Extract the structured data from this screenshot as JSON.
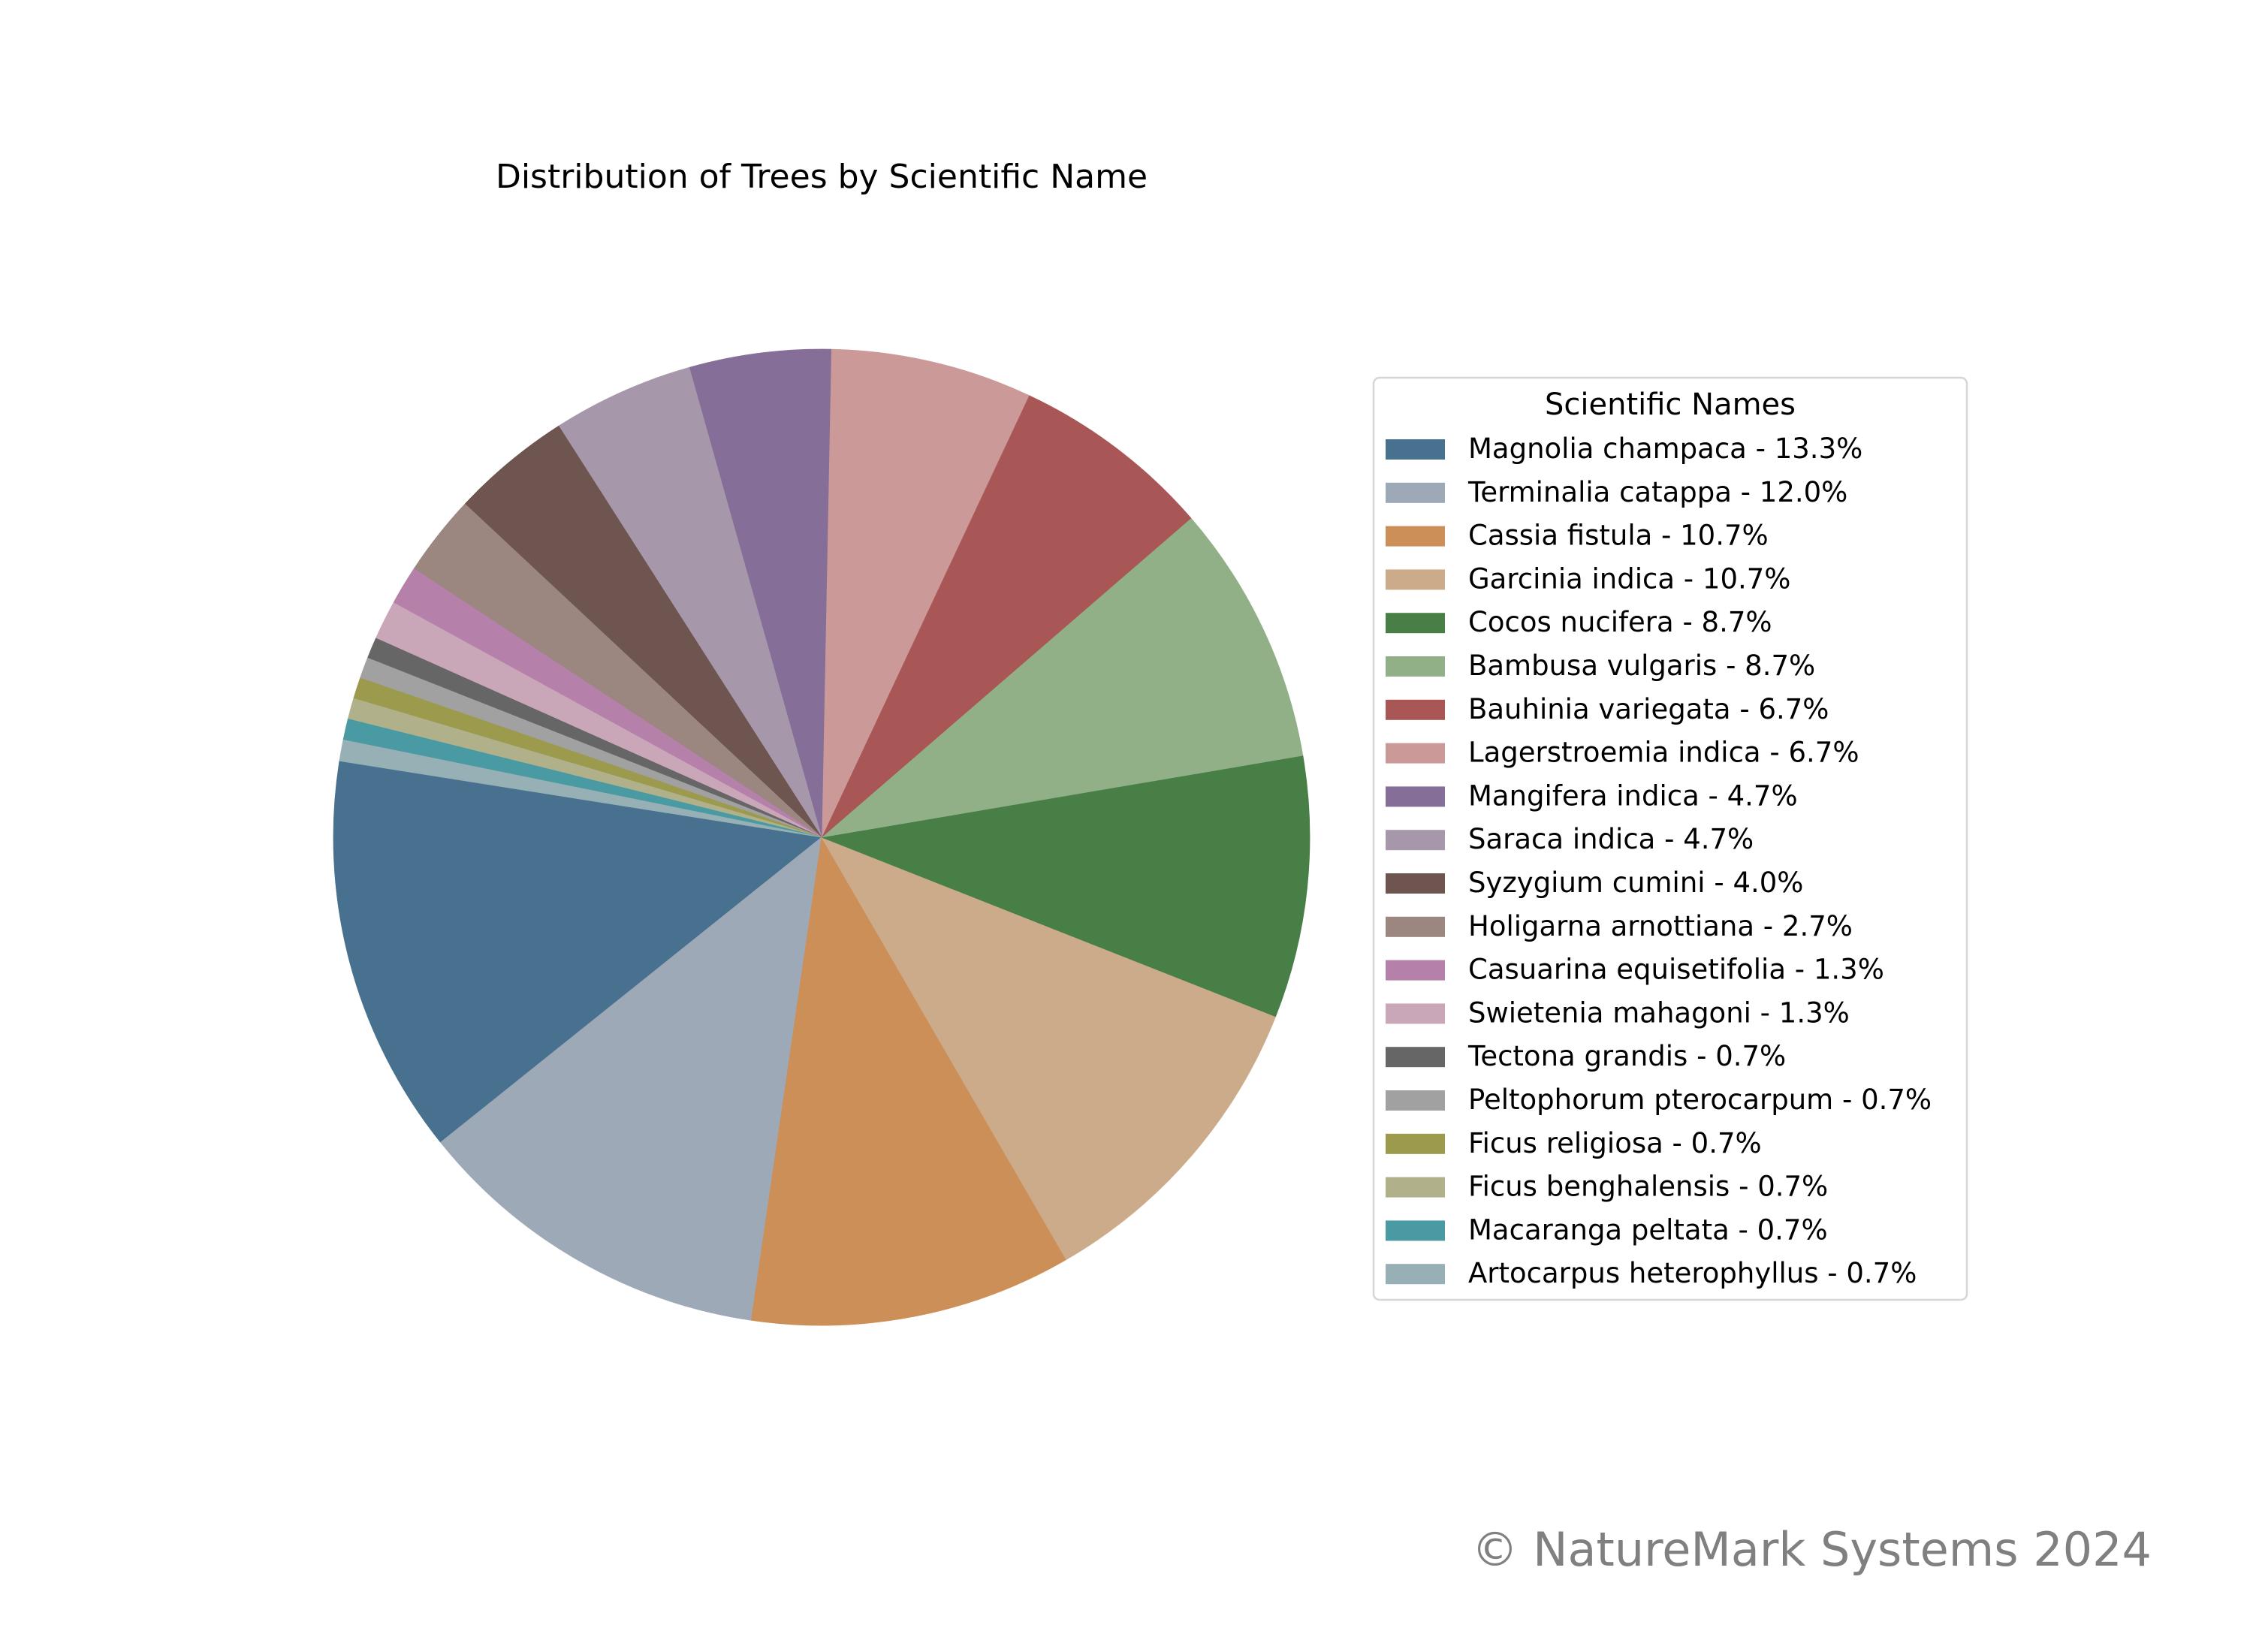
{
  "chart_data": {
    "type": "pie",
    "title": "Distribution of Trees by Scientific Name",
    "legend_title": "Scientific Names",
    "legend_position": "right",
    "start_angle_deg": 171,
    "direction": "counterclockwise",
    "slices": [
      {
        "name": "Magnolia champaca",
        "value": 13.3,
        "label": "Magnolia champaca - 13.3%",
        "color": "#47718f"
      },
      {
        "name": "Terminalia catappa",
        "value": 12.0,
        "label": "Terminalia catappa - 12.0%",
        "color": "#9ea9b8"
      },
      {
        "name": "Cassia fistula",
        "value": 10.7,
        "label": "Cassia fistula - 10.7%",
        "color": "#cc8f57"
      },
      {
        "name": "Garcinia indica",
        "value": 10.7,
        "label": "Garcinia indica - 10.7%",
        "color": "#ccab8a"
      },
      {
        "name": "Cocos nucifera",
        "value": 8.7,
        "label": "Cocos nucifera - 8.7%",
        "color": "#487f47"
      },
      {
        "name": "Bambusa vulgaris",
        "value": 8.7,
        "label": "Bambusa vulgaris - 8.7%",
        "color": "#91b088"
      },
      {
        "name": "Bauhinia variegata",
        "value": 6.7,
        "label": "Bauhinia variegata - 6.7%",
        "color": "#a85656"
      },
      {
        "name": "Lagerstroemia indica",
        "value": 6.7,
        "label": "Lagerstroemia indica - 6.7%",
        "color": "#cc9999"
      },
      {
        "name": "Mangifera indica",
        "value": 4.7,
        "label": "Mangifera indica - 4.7%",
        "color": "#856e97"
      },
      {
        "name": "Saraca indica",
        "value": 4.7,
        "label": "Saraca indica - 4.7%",
        "color": "#a697aa"
      },
      {
        "name": "Syzygium cumini",
        "value": 4.0,
        "label": "Syzygium cumini - 4.0%",
        "color": "#6e554f"
      },
      {
        "name": "Holigarna arnottiana",
        "value": 2.7,
        "label": "Holigarna arnottiana - 2.7%",
        "color": "#9c8680"
      },
      {
        "name": "Casuarina equisetifolia",
        "value": 1.3,
        "label": "Casuarina equisetifolia - 1.3%",
        "color": "#b581aa"
      },
      {
        "name": "Swietenia mahagoni",
        "value": 1.3,
        "label": "Swietenia mahagoni - 1.3%",
        "color": "#c9a6b8"
      },
      {
        "name": "Tectona grandis",
        "value": 0.7,
        "label": "Tectona grandis - 0.7%",
        "color": "#666666"
      },
      {
        "name": "Peltophorum pterocarpum",
        "value": 0.7,
        "label": "Peltophorum pterocarpum - 0.7%",
        "color": "#a1a1a1"
      },
      {
        "name": "Ficus religiosa",
        "value": 0.7,
        "label": "Ficus religiosa - 0.7%",
        "color": "#9c9a4d"
      },
      {
        "name": "Ficus benghalensis",
        "value": 0.7,
        "label": "Ficus benghalensis - 0.7%",
        "color": "#b0b08a"
      },
      {
        "name": "Macaranga peltata",
        "value": 0.7,
        "label": "Macaranga peltata - 0.7%",
        "color": "#4a9aa3"
      },
      {
        "name": "Artocarpus heterophyllus",
        "value": 0.7,
        "label": "Artocarpus heterophyllus - 0.7%",
        "color": "#96b0b5"
      }
    ]
  },
  "watermark": {
    "text": "© NatureMark Systems 2024",
    "color": "#808080"
  }
}
